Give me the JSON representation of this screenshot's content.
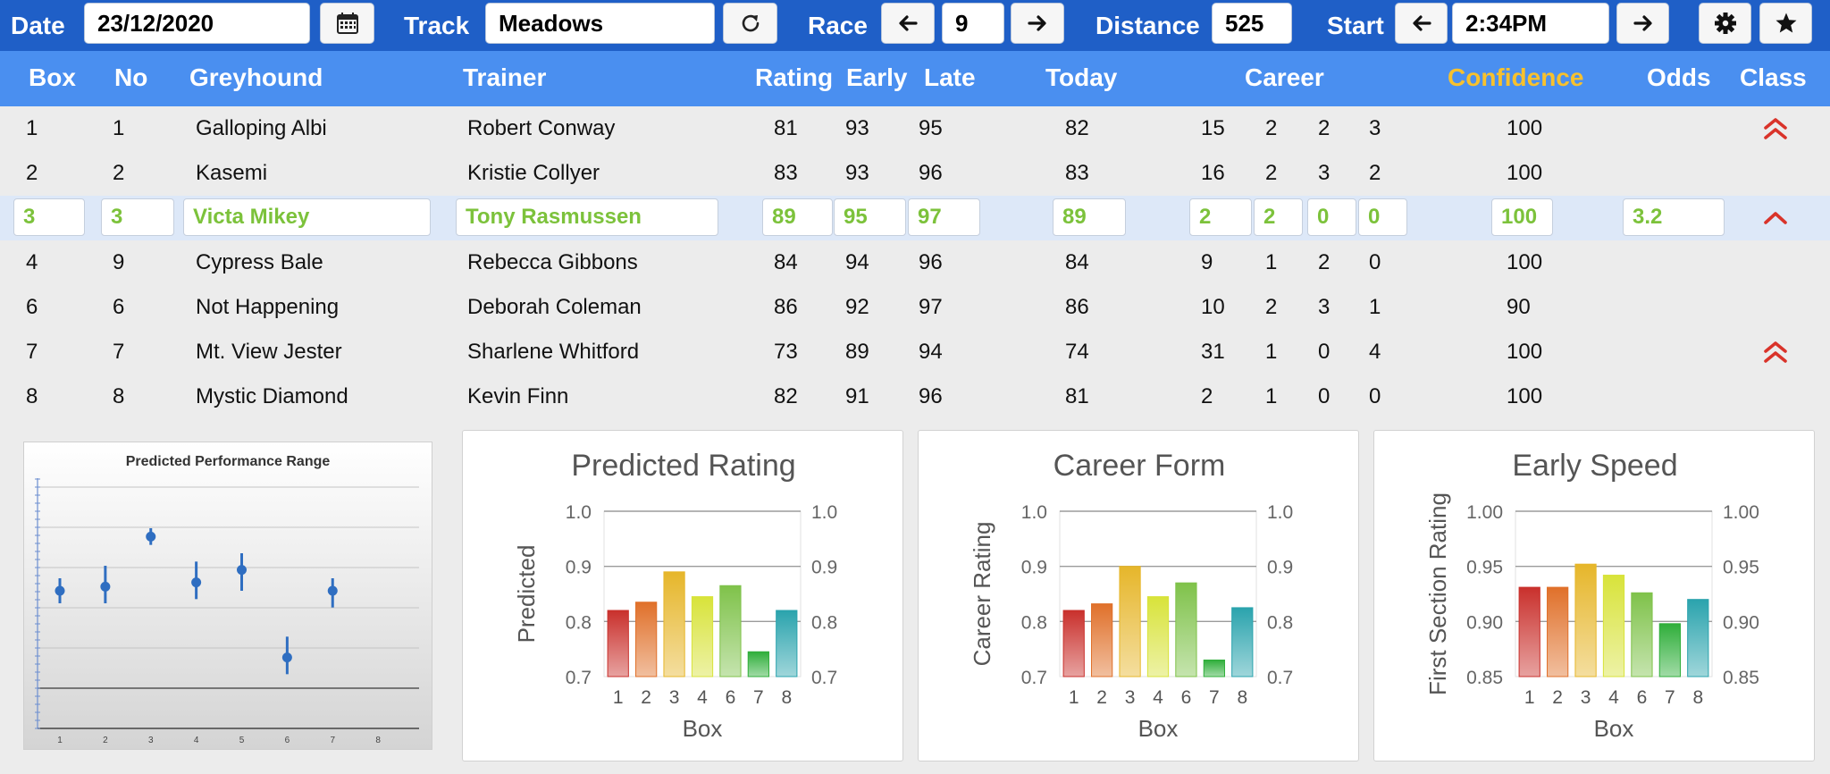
{
  "toolbar": {
    "date_label": "Date",
    "date_value": "23/12/2020",
    "calendar_icon": "calendar-icon",
    "track_label": "Track",
    "track_value": "Meadows",
    "refresh_icon": "refresh-icon",
    "race_label": "Race",
    "race_value": "9",
    "distance_label": "Distance",
    "distance_value": "525",
    "start_label": "Start",
    "start_value": "2:34PM",
    "settings_icon": "gear-icon",
    "favorite_icon": "star-icon"
  },
  "table": {
    "headers": {
      "box": "Box",
      "no": "No",
      "greyhound": "Greyhound",
      "trainer": "Trainer",
      "rating": "Rating",
      "early": "Early",
      "late": "Late",
      "today": "Today",
      "career": "Career",
      "confidence": "Confidence",
      "odds": "Odds",
      "class": "Class"
    },
    "rows": [
      {
        "box": "1",
        "no": "1",
        "greyhound": "Galloping Albi",
        "trainer": "Robert Conway",
        "rating": "81",
        "early": "93",
        "late": "95",
        "today": "82",
        "career": [
          "15",
          "2",
          "2",
          "3"
        ],
        "confidence": "100",
        "odds": "",
        "class": "double-up"
      },
      {
        "box": "2",
        "no": "2",
        "greyhound": "Kasemi",
        "trainer": "Kristie Collyer",
        "rating": "83",
        "early": "93",
        "late": "96",
        "today": "83",
        "career": [
          "16",
          "2",
          "3",
          "2"
        ],
        "confidence": "100",
        "odds": "",
        "class": ""
      },
      {
        "box": "3",
        "no": "3",
        "greyhound": "Victa Mikey",
        "trainer": "Tony Rasmussen",
        "rating": "89",
        "early": "95",
        "late": "97",
        "today": "89",
        "career": [
          "2",
          "2",
          "0",
          "0"
        ],
        "confidence": "100",
        "odds": "3.2",
        "class": "up"
      },
      {
        "box": "4",
        "no": "9",
        "greyhound": "Cypress Bale",
        "trainer": "Rebecca Gibbons",
        "rating": "84",
        "early": "94",
        "late": "96",
        "today": "84",
        "career": [
          "9",
          "1",
          "2",
          "0"
        ],
        "confidence": "100",
        "odds": "",
        "class": ""
      },
      {
        "box": "6",
        "no": "6",
        "greyhound": "Not Happening",
        "trainer": "Deborah Coleman",
        "rating": "86",
        "early": "92",
        "late": "97",
        "today": "86",
        "career": [
          "10",
          "2",
          "3",
          "1"
        ],
        "confidence": "90",
        "odds": "",
        "class": ""
      },
      {
        "box": "7",
        "no": "7",
        "greyhound": "Mt. View Jester",
        "trainer": "Sharlene Whitford",
        "rating": "73",
        "early": "89",
        "late": "94",
        "today": "74",
        "career": [
          "31",
          "1",
          "0",
          "4"
        ],
        "confidence": "100",
        "odds": "",
        "class": "double-up"
      },
      {
        "box": "8",
        "no": "8",
        "greyhound": "Mystic Diamond",
        "trainer": "Kevin Finn",
        "rating": "82",
        "early": "91",
        "late": "96",
        "today": "81",
        "career": [
          "2",
          "1",
          "0",
          "0"
        ],
        "confidence": "100",
        "odds": "",
        "class": ""
      }
    ],
    "selected_row": 2
  },
  "colors": {
    "toolbar_bg": "#1f5fc7",
    "header_bg": "#4a8ff0",
    "confidence_header": "#f7c12e",
    "selected_text": "#7cc23b",
    "class_arrow": "#d9332a",
    "bar_colors": [
      "#c9302c",
      "#e0702a",
      "#e6b62a",
      "#d8e33a",
      "#7fc24a",
      "#2fae3a",
      "#2aa3ad"
    ]
  },
  "chart_data": [
    {
      "type": "scatter",
      "title": "Predicted Performance Range",
      "categories": [
        "1",
        "2",
        "3",
        "4",
        "5",
        "6",
        "7",
        "8"
      ],
      "points": [
        {
          "x": "1",
          "y": 0.83,
          "low": 0.8,
          "high": 0.86
        },
        {
          "x": "2",
          "y": 0.84,
          "low": 0.8,
          "high": 0.89
        },
        {
          "x": "3",
          "y": 0.96,
          "low": 0.94,
          "high": 0.98
        },
        {
          "x": "4",
          "y": 0.85,
          "low": 0.81,
          "high": 0.9
        },
        {
          "x": "5",
          "y": 0.88,
          "low": 0.83,
          "high": 0.92
        },
        {
          "x": "6",
          "y": 0.67,
          "low": 0.63,
          "high": 0.72
        },
        {
          "x": "7",
          "y": 0.83,
          "low": 0.79,
          "high": 0.86
        }
      ],
      "ylim": [
        0.5,
        1.1
      ],
      "grid": true
    },
    {
      "type": "bar",
      "title": "Predicted Rating",
      "categories": [
        "1",
        "2",
        "3",
        "4",
        "6",
        "7",
        "8"
      ],
      "values": [
        0.82,
        0.835,
        0.89,
        0.845,
        0.865,
        0.745,
        0.82
      ],
      "xlabel": "Box",
      "ylabel": "Predicted",
      "ylim": [
        0.7,
        1.0
      ],
      "yticks": [
        "0.7",
        "0.8",
        "0.9",
        "1.0"
      ],
      "grid": true
    },
    {
      "type": "bar",
      "title": "Career Form",
      "categories": [
        "1",
        "2",
        "3",
        "4",
        "6",
        "7",
        "8"
      ],
      "values": [
        0.82,
        0.832,
        0.9,
        0.845,
        0.87,
        0.73,
        0.825
      ],
      "xlabel": "Box",
      "ylabel": "Career Rating",
      "ylim": [
        0.7,
        1.0
      ],
      "yticks": [
        "0.7",
        "0.8",
        "0.9",
        "1.0"
      ],
      "grid": true
    },
    {
      "type": "bar",
      "title": "Early Speed",
      "categories": [
        "1",
        "2",
        "3",
        "4",
        "6",
        "7",
        "8"
      ],
      "values": [
        0.931,
        0.931,
        0.952,
        0.942,
        0.926,
        0.898,
        0.92
      ],
      "xlabel": "Box",
      "ylabel": "First Section Rating",
      "ylim": [
        0.85,
        1.0
      ],
      "yticks": [
        "0.85",
        "0.90",
        "0.95",
        "1.00"
      ],
      "grid": true
    }
  ]
}
